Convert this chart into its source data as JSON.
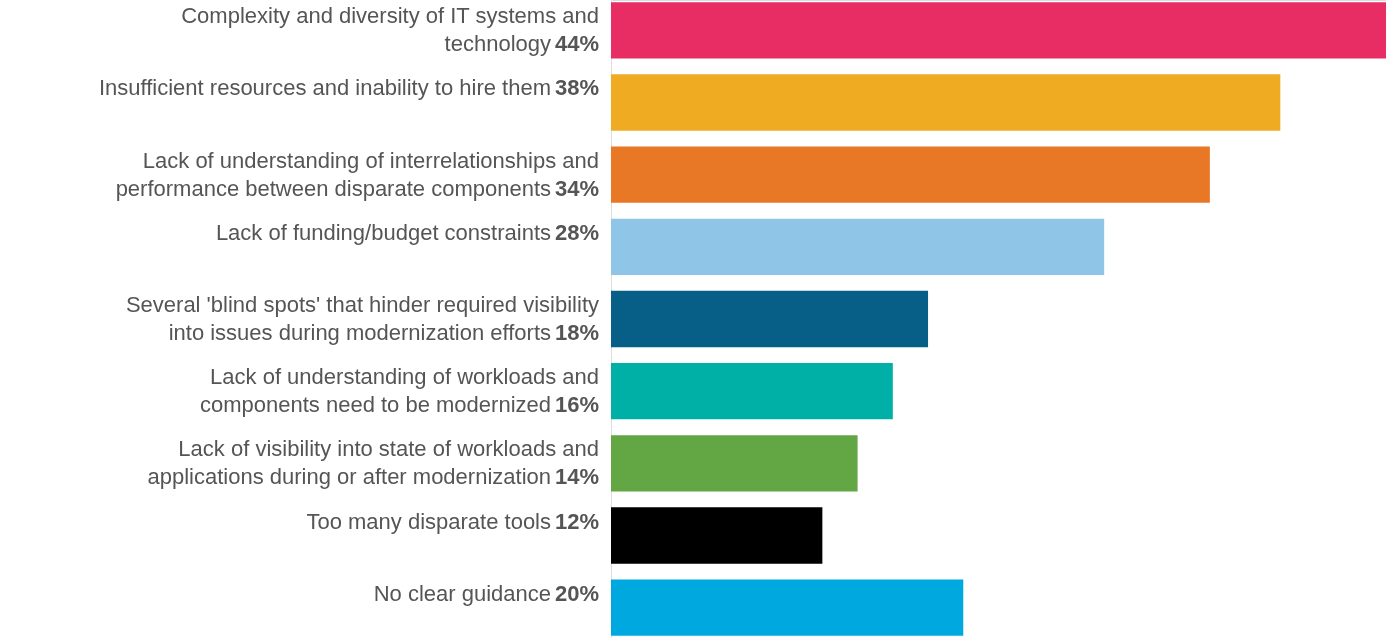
{
  "chart_data": {
    "type": "bar",
    "orientation": "horizontal",
    "categories": [
      "Complexity and diversity of IT systems and\ntechnology",
      "Insufficient resources and inability to hire them",
      "Lack of understanding of interrelationships and\nperformance between disparate components",
      "Lack of funding/budget constraints",
      "Several 'blind spots' that hinder required visibility\ninto issues during modernization efforts",
      "Lack of understanding of workloads and\ncomponents need to be modernized",
      "Lack of visibility into state of workloads and\napplications during or after modernization",
      "Too many disparate tools",
      "No clear guidance"
    ],
    "values": [
      44,
      38,
      34,
      28,
      18,
      16,
      14,
      12,
      20
    ],
    "value_labels": [
      "44%",
      "38%",
      "34%",
      "28%",
      "18%",
      "16%",
      "14%",
      "12%",
      "20%"
    ],
    "colors": [
      "#e82c64",
      "#efab22",
      "#e87726",
      "#8fc6e8",
      "#075f88",
      "#00b0a6",
      "#62a744",
      "#000000",
      "#00a8e0"
    ]
  }
}
